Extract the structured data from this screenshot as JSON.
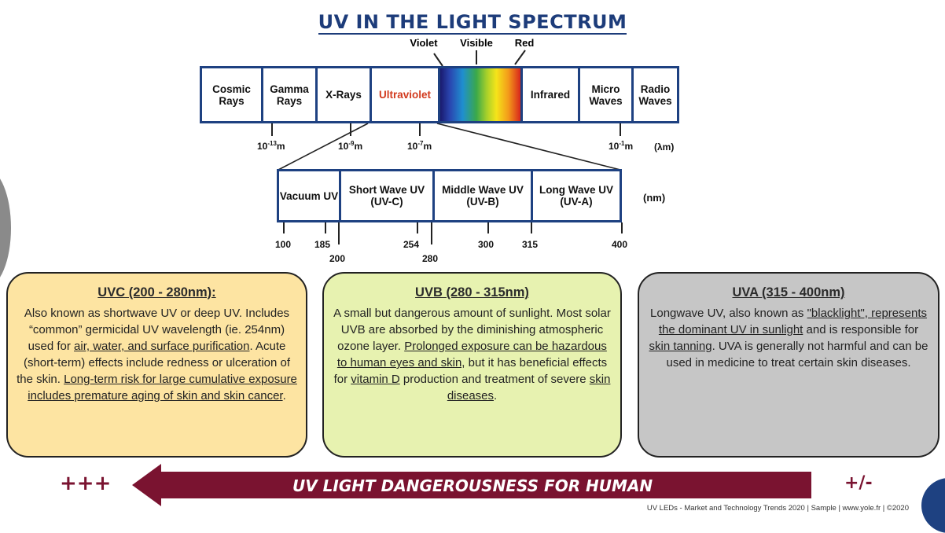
{
  "title": "UV IN THE LIGHT SPECTRUM",
  "visible_labels": {
    "violet": "Violet",
    "visible": "Visible",
    "red": "Red"
  },
  "spectrum_bands": [
    "Cosmic Rays",
    "Gamma Rays",
    "X-Rays",
    "Ultraviolet",
    "",
    "Infrared",
    "Micro Waves",
    "Radio Waves"
  ],
  "colors": {
    "frame": "#1e4181",
    "ultraviolet_text": "#d23a1e",
    "arrow": "#7a1330",
    "uvc_bg": "#fde4a2",
    "uvb_bg": "#e7f2b0",
    "uva_bg": "#c6c6c6",
    "title": "#1d3c7a"
  },
  "wavelength_ticks": [
    {
      "base": "10",
      "exp": "-13",
      "unit": "m"
    },
    {
      "base": "10",
      "exp": "-9",
      "unit": "m"
    },
    {
      "base": "10",
      "exp": "-7",
      "unit": "m"
    },
    {
      "base": "10",
      "exp": "-1",
      "unit": "m"
    }
  ],
  "lambda_unit": "(λm)",
  "uv_bands": [
    "Vacuum UV",
    "Short Wave UV (UV-C)",
    "Middle Wave UV (UV-B)",
    "Long Wave UV (UV-A)"
  ],
  "nm_unit": "(nm)",
  "nm_ticks_top": [
    "100",
    "185",
    "254",
    "300",
    "315",
    "400"
  ],
  "nm_ticks_bottom": [
    "200",
    "280"
  ],
  "uvc": {
    "heading": "UVC (200 - 280nm):",
    "p1": "Also known as shortwave UV or deep UV. Includes “common” germicidal UV wavelength (ie. 254nm) used for ",
    "u1": "air, water, and surface purification",
    "p2": ". Acute (short-term) effects include redness or ulceration of the skin. ",
    "u2": "Long-term risk for large cumulative exposure includes premature aging of skin and skin cancer",
    "p3": "."
  },
  "uvb": {
    "heading": "UVB (280 - 315nm)",
    "p1": "A small but dangerous amount of sunlight. Most solar UVB are absorbed by the diminishing atmospheric ozone layer. ",
    "u1": "Prolonged exposure can be hazardous to human eyes and skin,",
    "p2": " but it has beneficial effects for ",
    "u2": "vitamin D",
    "p3": "  production and treatment of severe ",
    "u3": "skin diseases",
    "p4": "."
  },
  "uva": {
    "heading": "UVA (315 - 400nm)",
    "p1": "Longwave UV, also known as ",
    "u1": "\"blacklight\", represents the dominant UV in sunlight",
    "p2": " and is responsible for ",
    "u2": "skin tanning",
    "p3": ". UVA is generally not harmful and can be used in medicine to treat certain skin diseases."
  },
  "danger": {
    "plus3": "+++",
    "label": "UV LIGHT DANGEROUSNESS FOR HUMAN",
    "plusminus": "+/-"
  },
  "footer": "UV LEDs - Market and Technology Trends 2020 | Sample | www.yole.fr | ©2020"
}
